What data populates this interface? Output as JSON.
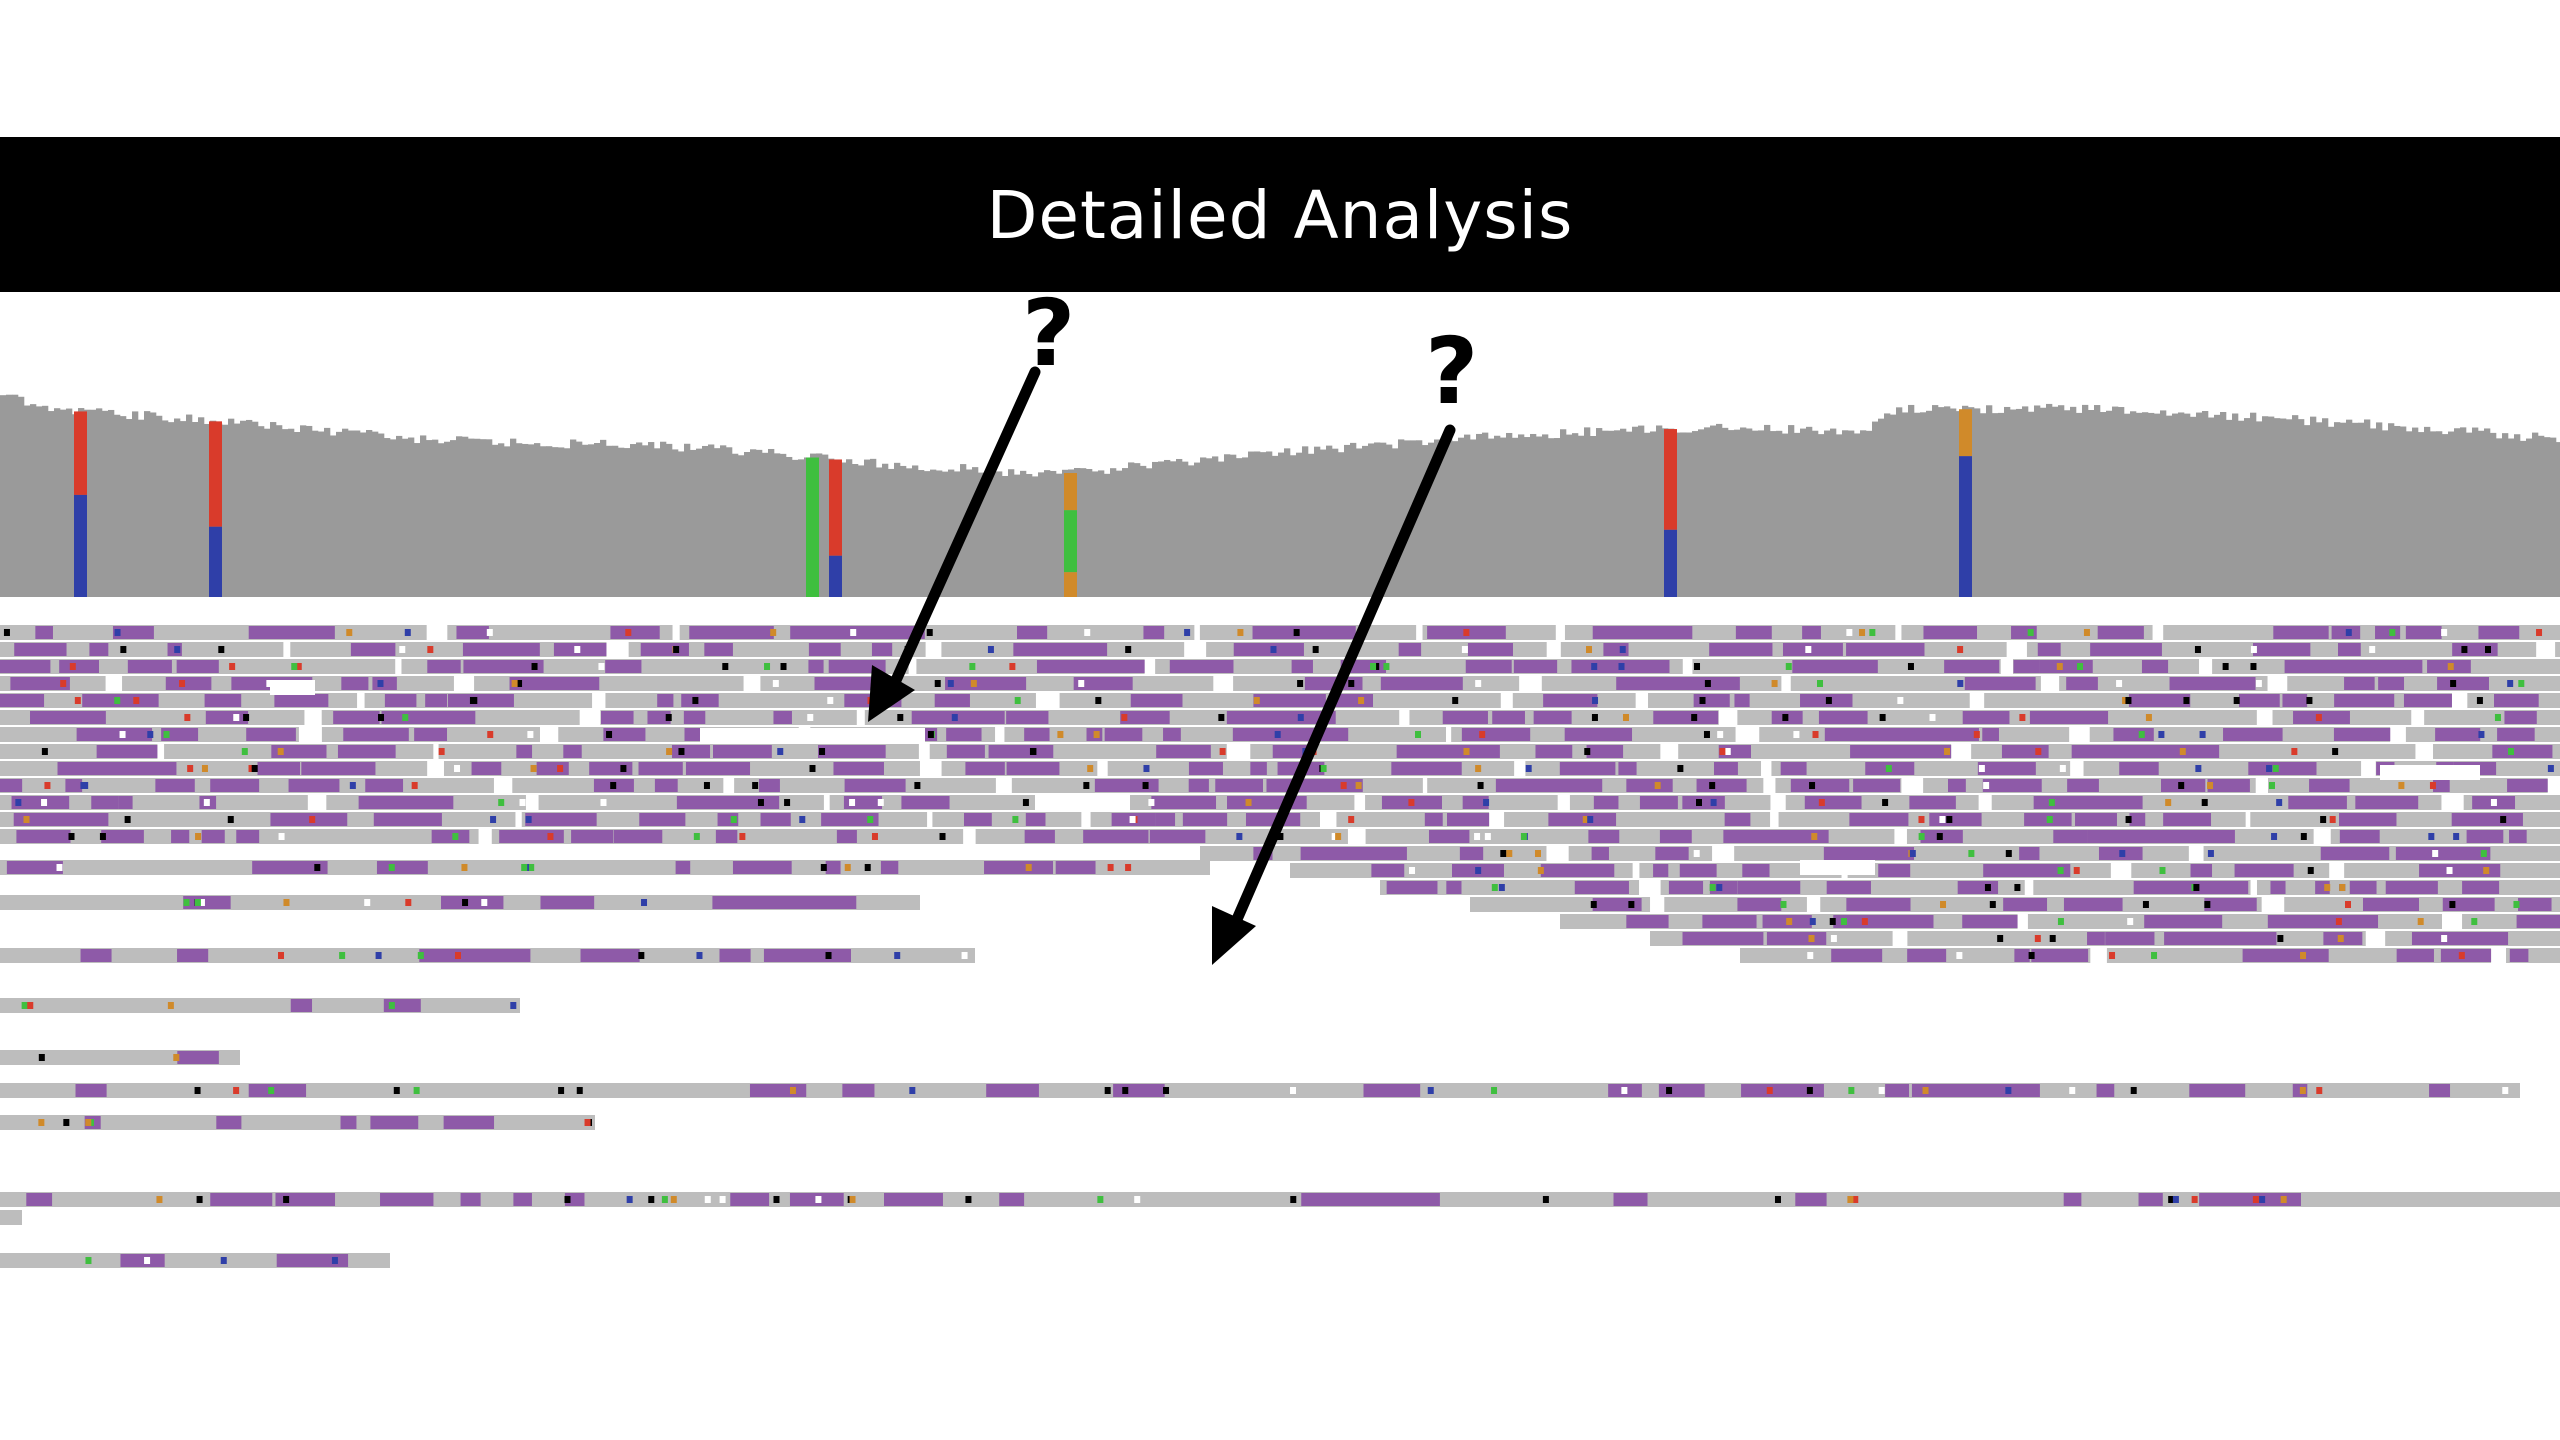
{
  "slide": {
    "title": "Detailed Analysis"
  },
  "annotations": {
    "question_marks": [
      {
        "label": "?"
      },
      {
        "label": "?"
      }
    ]
  },
  "colors": {
    "title_bar": "#000000",
    "title_text": "#ffffff",
    "coverage": "#9a9a9a",
    "read": "#bdbdbd",
    "insertion": "#8e5aa8",
    "mismatch_red": "#d93b2b",
    "mismatch_blue": "#2f3fa8",
    "mismatch_green": "#3fbf3f",
    "mismatch_orange": "#d08a2a",
    "arrow": "#000000"
  },
  "icons": {
    "arrow": "arrow-down-left-icon"
  }
}
